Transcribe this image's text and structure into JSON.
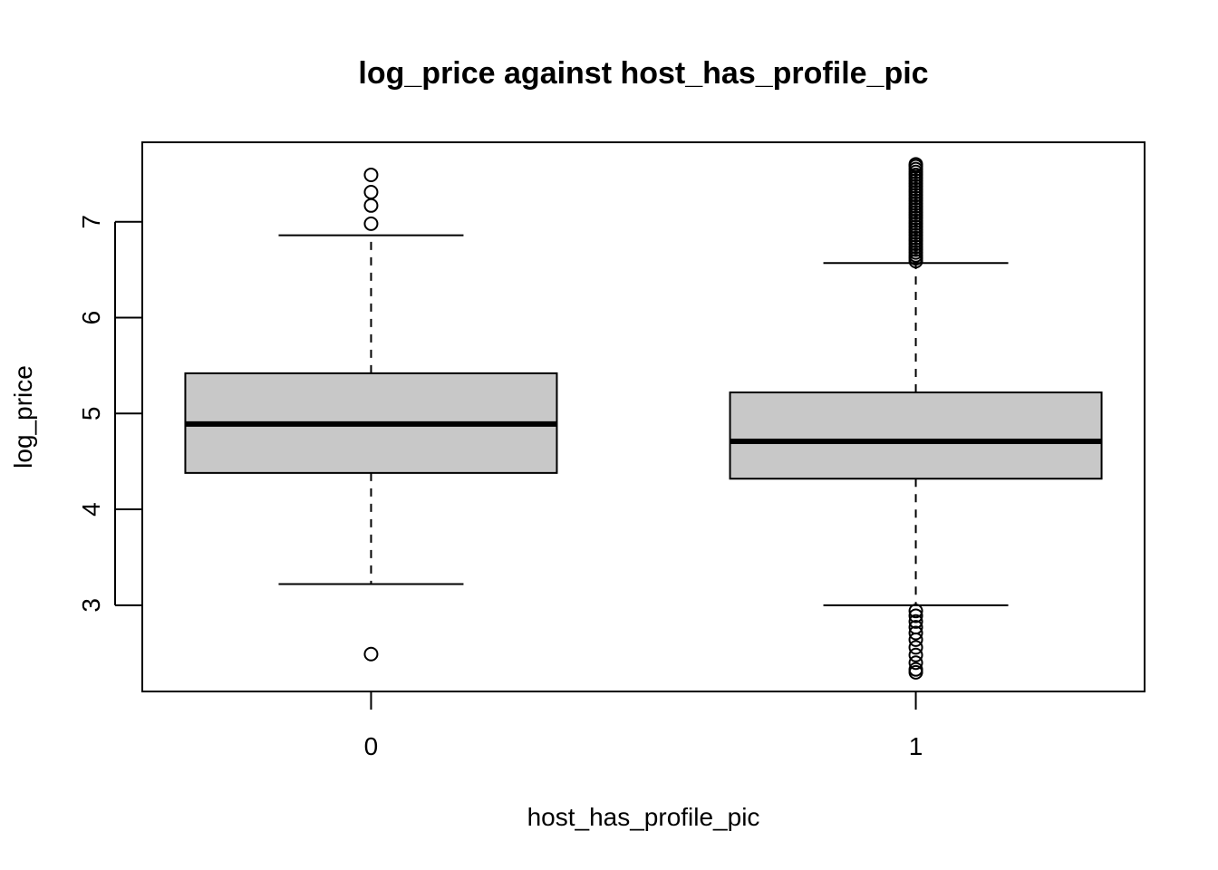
{
  "chart_data": {
    "type": "boxplot",
    "title": "log_price against host_has_profile_pic",
    "xlabel": "host_has_profile_pic",
    "ylabel": "log_price",
    "categories": [
      "0",
      "1"
    ],
    "ylim": [
      2.1,
      7.83
    ],
    "yticks": [
      3,
      4,
      5,
      6,
      7
    ],
    "grid": false,
    "box_fill": "#c8c8c8",
    "boxes": [
      {
        "category": "0",
        "whisker_low": 3.22,
        "q1": 4.38,
        "median": 4.89,
        "q3": 5.42,
        "whisker_high": 6.86,
        "outliers": [
          2.49,
          6.98,
          7.17,
          7.31,
          7.49
        ]
      },
      {
        "category": "1",
        "whisker_low": 3.0,
        "q1": 4.32,
        "median": 4.71,
        "q3": 5.22,
        "whisker_high": 6.57,
        "outliers": [
          2.3,
          2.33,
          2.4,
          2.48,
          2.56,
          2.64,
          2.71,
          2.77,
          2.83,
          2.89,
          2.94,
          6.59,
          6.62,
          6.65,
          6.68,
          6.71,
          6.74,
          6.77,
          6.8,
          6.83,
          6.86,
          6.89,
          6.92,
          6.95,
          6.98,
          7.01,
          7.04,
          7.07,
          7.1,
          7.13,
          7.16,
          7.19,
          7.22,
          7.25,
          7.28,
          7.31,
          7.34,
          7.37,
          7.4,
          7.43,
          7.46,
          7.49,
          7.52,
          7.55,
          7.58,
          7.6
        ]
      }
    ]
  }
}
